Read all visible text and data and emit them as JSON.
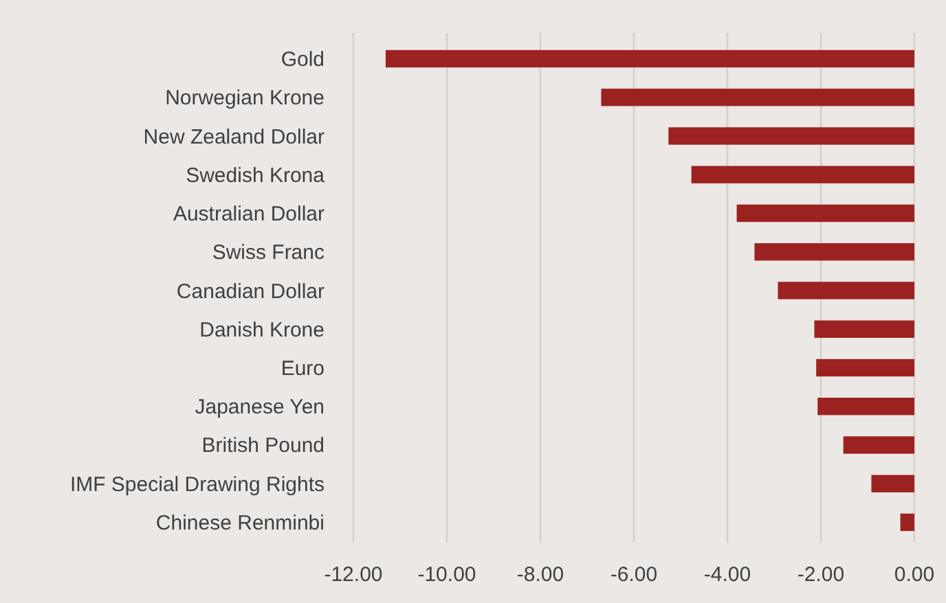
{
  "chart_data": {
    "type": "bar",
    "orientation": "horizontal",
    "categories": [
      "Gold",
      "Norwegian Krone",
      "New Zealand Dollar",
      "Swedish Krona",
      "Australian Dollar",
      "Swiss Franc",
      "Canadian Dollar",
      "Danish Krone",
      "Euro",
      "Japanese Yen",
      "British Pound",
      "IMF Special Drawing Rights",
      "Chinese Renminbi"
    ],
    "values": [
      -11.31,
      -6.7,
      -5.26,
      -4.77,
      -3.8,
      -3.42,
      -2.92,
      -2.14,
      -2.1,
      -2.07,
      -1.52,
      -0.92,
      -0.3
    ],
    "color": "#9b2220",
    "xlim": [
      -12,
      0
    ],
    "xticks": [
      {
        "value": -12,
        "label": "-12.00"
      },
      {
        "value": -10,
        "label": "-10.00"
      },
      {
        "value": -8,
        "label": "-8.00"
      },
      {
        "value": -6,
        "label": "-6.00"
      },
      {
        "value": -4,
        "label": "-4.00"
      },
      {
        "value": -2,
        "label": "-2.00"
      },
      {
        "value": 0,
        "label": "0.00"
      }
    ],
    "grid": "x"
  }
}
